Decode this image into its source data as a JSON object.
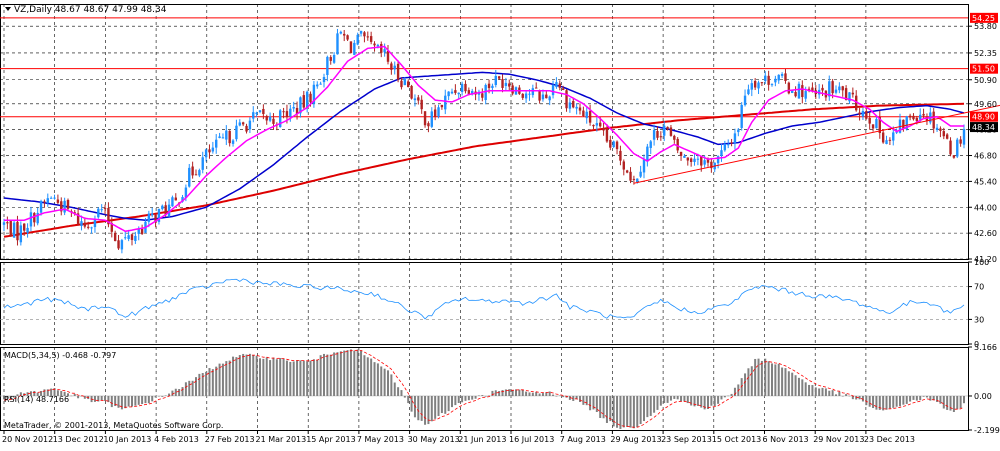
{
  "header": {
    "symbol_line": "VZ,Daily  48.67 48.67 47.99 48.34"
  },
  "footer": {
    "copyright": "MetaTrader, © 2001-2013, MetaQuotes Software Corp."
  },
  "colors": {
    "bull_candle": "#1e90ff",
    "bear_candle": "#b22222",
    "ma_fast": "#ff00ff",
    "ma_mid": "#0000cd",
    "ma_slow": "#dd0000",
    "hline": "#ff0000",
    "rsi_line": "#1e90ff",
    "macd_hist": "#808080",
    "macd_signal": "#ff0000",
    "grid": "#000000"
  },
  "chart_data": [
    {
      "type": "candlestick",
      "panel": "price",
      "ylim": [
        41.2,
        55.0
      ],
      "y_ticks": [
        "53.80",
        "52.35",
        "50.90",
        "49.60",
        "48.20",
        "46.80",
        "45.40",
        "44.00",
        "42.60",
        "41.20"
      ],
      "x_ticks": [
        "20 Nov 2012",
        "13 Dec 2012",
        "10 Jan 2013",
        "4 Feb 2013",
        "27 Feb 2013",
        "21 Mar 2013",
        "15 Apr 2013",
        "7 May 2013",
        "30 May 2013",
        "21 Jun 2013",
        "16 Jul 2013",
        "7 Aug 2013",
        "29 Aug 2013",
        "23 Sep 2013",
        "15 Oct 2013",
        "6 Nov 2013",
        "29 Nov 2013",
        "23 Dec 2013"
      ],
      "horizontal_lines": [
        {
          "value": 54.25,
          "label": "54.25"
        },
        {
          "value": 51.5,
          "label": "51.50"
        },
        {
          "value": 48.9,
          "label": "48.90"
        }
      ],
      "current_price": {
        "value": 48.34,
        "label": "48.34"
      },
      "price_anchors": [
        [
          0,
          43.1
        ],
        [
          4,
          42.6
        ],
        [
          9,
          43.6
        ],
        [
          14,
          44.6
        ],
        [
          19,
          43.8
        ],
        [
          24,
          43.0
        ],
        [
          29,
          43.9
        ],
        [
          34,
          42.1
        ],
        [
          38,
          42.4
        ],
        [
          43,
          43.3
        ],
        [
          47,
          43.8
        ],
        [
          51,
          44.2
        ],
        [
          55,
          45.7
        ],
        [
          60,
          46.8
        ],
        [
          65,
          47.6
        ],
        [
          70,
          48.3
        ],
        [
          75,
          48.9
        ],
        [
          80,
          48.7
        ],
        [
          84,
          49.1
        ],
        [
          89,
          49.6
        ],
        [
          93,
          50.6
        ],
        [
          97,
          52.2
        ],
        [
          100,
          53.4
        ],
        [
          103,
          52.7
        ],
        [
          106,
          53.1
        ],
        [
          110,
          52.5
        ],
        [
          113,
          52.2
        ],
        [
          116,
          51.3
        ],
        [
          120,
          50.6
        ],
        [
          123,
          49.4
        ],
        [
          126,
          48.6
        ],
        [
          129,
          49.3
        ],
        [
          133,
          50.3
        ],
        [
          137,
          50.7
        ],
        [
          141,
          50.1
        ],
        [
          145,
          50.8
        ],
        [
          149,
          50.9
        ],
        [
          153,
          50.3
        ],
        [
          157,
          50.2
        ],
        [
          161,
          49.9
        ],
        [
          164,
          51.0
        ],
        [
          167,
          49.8
        ],
        [
          171,
          49.2
        ],
        [
          175,
          48.5
        ],
        [
          179,
          47.5
        ],
        [
          182,
          47.0
        ],
        [
          185,
          46.1
        ],
        [
          187,
          45.4
        ],
        [
          190,
          46.8
        ],
        [
          193,
          47.9
        ],
        [
          196,
          48.4
        ],
        [
          199,
          47.3
        ],
        [
          202,
          46.6
        ],
        [
          206,
          46.8
        ],
        [
          209,
          46.3
        ],
        [
          212,
          46.6
        ],
        [
          215,
          47.4
        ],
        [
          218,
          48.4
        ],
        [
          220,
          50.3
        ],
        [
          222,
          50.9
        ],
        [
          225,
          50.8
        ],
        [
          229,
          51.1
        ],
        [
          233,
          50.5
        ],
        [
          237,
          50.3
        ],
        [
          241,
          50.0
        ],
        [
          245,
          50.4
        ],
        [
          249,
          50.2
        ],
        [
          253,
          49.5
        ],
        [
          257,
          48.9
        ],
        [
          260,
          48.1
        ],
        [
          263,
          47.6
        ],
        [
          266,
          48.3
        ],
        [
          269,
          48.9
        ],
        [
          272,
          49.2
        ],
        [
          275,
          48.9
        ],
        [
          278,
          48.2
        ],
        [
          280,
          47.5
        ],
        [
          282,
          47.0
        ],
        [
          284,
          47.8
        ],
        [
          285,
          48.3
        ]
      ],
      "ma_fast_anchors": [
        [
          0,
          43.3
        ],
        [
          6,
          43.3
        ],
        [
          12,
          43.7
        ],
        [
          18,
          43.9
        ],
        [
          24,
          43.4
        ],
        [
          30,
          43.3
        ],
        [
          36,
          42.7
        ],
        [
          42,
          42.9
        ],
        [
          48,
          43.6
        ],
        [
          54,
          44.5
        ],
        [
          60,
          45.7
        ],
        [
          66,
          46.7
        ],
        [
          72,
          47.6
        ],
        [
          78,
          48.2
        ],
        [
          84,
          48.7
        ],
        [
          90,
          49.4
        ],
        [
          96,
          50.5
        ],
        [
          102,
          51.9
        ],
        [
          108,
          52.6
        ],
        [
          113,
          52.7
        ],
        [
          118,
          51.7
        ],
        [
          123,
          50.6
        ],
        [
          128,
          49.8
        ],
        [
          133,
          49.7
        ],
        [
          138,
          50.1
        ],
        [
          144,
          50.3
        ],
        [
          150,
          50.3
        ],
        [
          156,
          50.3
        ],
        [
          162,
          50.3
        ],
        [
          167,
          50.1
        ],
        [
          172,
          49.6
        ],
        [
          177,
          48.8
        ],
        [
          182,
          47.9
        ],
        [
          187,
          46.9
        ],
        [
          191,
          46.5
        ],
        [
          195,
          47.0
        ],
        [
          199,
          47.4
        ],
        [
          204,
          47.0
        ],
        [
          209,
          46.6
        ],
        [
          214,
          46.7
        ],
        [
          218,
          47.2
        ],
        [
          222,
          48.6
        ],
        [
          227,
          49.8
        ],
        [
          232,
          50.3
        ],
        [
          237,
          50.4
        ],
        [
          242,
          50.2
        ],
        [
          247,
          50.0
        ],
        [
          252,
          49.8
        ],
        [
          257,
          49.3
        ],
        [
          261,
          48.6
        ],
        [
          265,
          48.1
        ],
        [
          269,
          48.4
        ],
        [
          273,
          48.8
        ],
        [
          277,
          48.9
        ],
        [
          281,
          48.4
        ],
        [
          285,
          48.4
        ]
      ],
      "ma_mid_anchors": [
        [
          0,
          44.5
        ],
        [
          10,
          44.3
        ],
        [
          20,
          44.0
        ],
        [
          30,
          43.6
        ],
        [
          36,
          43.4
        ],
        [
          42,
          43.3
        ],
        [
          50,
          43.5
        ],
        [
          60,
          44.0
        ],
        [
          70,
          45.0
        ],
        [
          80,
          46.3
        ],
        [
          90,
          47.8
        ],
        [
          100,
          49.2
        ],
        [
          110,
          50.4
        ],
        [
          118,
          51.0
        ],
        [
          126,
          51.1
        ],
        [
          134,
          51.2
        ],
        [
          142,
          51.3
        ],
        [
          150,
          51.2
        ],
        [
          158,
          50.9
        ],
        [
          166,
          50.5
        ],
        [
          174,
          49.9
        ],
        [
          182,
          49.1
        ],
        [
          190,
          48.5
        ],
        [
          198,
          48.2
        ],
        [
          206,
          47.8
        ],
        [
          212,
          47.4
        ],
        [
          218,
          47.5
        ],
        [
          226,
          48.0
        ],
        [
          234,
          48.4
        ],
        [
          242,
          48.6
        ],
        [
          250,
          48.9
        ],
        [
          258,
          49.2
        ],
        [
          266,
          49.4
        ],
        [
          274,
          49.5
        ],
        [
          281,
          49.3
        ],
        [
          285,
          49.1
        ]
      ],
      "ma_slow_anchors": [
        [
          0,
          42.4
        ],
        [
          20,
          43.0
        ],
        [
          40,
          43.5
        ],
        [
          60,
          44.1
        ],
        [
          80,
          44.9
        ],
        [
          100,
          45.8
        ],
        [
          120,
          46.6
        ],
        [
          140,
          47.3
        ],
        [
          160,
          47.8
        ],
        [
          180,
          48.3
        ],
        [
          200,
          48.7
        ],
        [
          220,
          49.0
        ],
        [
          240,
          49.3
        ],
        [
          260,
          49.5
        ],
        [
          285,
          49.6
        ]
      ],
      "trendline": {
        "from": [
          187,
          45.3
        ],
        "to": [
          303,
          49.8
        ]
      }
    },
    {
      "type": "line",
      "panel": "rsi",
      "title": "RSI(14) 48.7166",
      "ylim": [
        0,
        100
      ],
      "y_ticks": [
        "100",
        "70",
        "30",
        "0"
      ],
      "levels": [
        70,
        30
      ],
      "anchors": [
        [
          0,
          45
        ],
        [
          6,
          48
        ],
        [
          12,
          55
        ],
        [
          18,
          51
        ],
        [
          24,
          42
        ],
        [
          30,
          47
        ],
        [
          36,
          33
        ],
        [
          42,
          43
        ],
        [
          48,
          52
        ],
        [
          54,
          63
        ],
        [
          60,
          70
        ],
        [
          66,
          77
        ],
        [
          70,
          79
        ],
        [
          76,
          74
        ],
        [
          82,
          73
        ],
        [
          88,
          70
        ],
        [
          94,
          69
        ],
        [
          100,
          67
        ],
        [
          104,
          64
        ],
        [
          110,
          61
        ],
        [
          116,
          50
        ],
        [
          122,
          38
        ],
        [
          126,
          32
        ],
        [
          130,
          46
        ],
        [
          136,
          56
        ],
        [
          142,
          52
        ],
        [
          148,
          53
        ],
        [
          154,
          50
        ],
        [
          160,
          55
        ],
        [
          164,
          60
        ],
        [
          168,
          45
        ],
        [
          174,
          40
        ],
        [
          180,
          33
        ],
        [
          186,
          30
        ],
        [
          190,
          42
        ],
        [
          195,
          53
        ],
        [
          200,
          44
        ],
        [
          205,
          38
        ],
        [
          210,
          43
        ],
        [
          215,
          48
        ],
        [
          220,
          62
        ],
        [
          224,
          70
        ],
        [
          228,
          69
        ],
        [
          234,
          63
        ],
        [
          240,
          59
        ],
        [
          246,
          57
        ],
        [
          252,
          52
        ],
        [
          258,
          44
        ],
        [
          262,
          38
        ],
        [
          266,
          45
        ],
        [
          270,
          52
        ],
        [
          276,
          50
        ],
        [
          280,
          38
        ],
        [
          283,
          42
        ],
        [
          285,
          49
        ]
      ]
    },
    {
      "type": "bar",
      "panel": "macd",
      "title": "MACD(5,34,5) -0.468 -0.797",
      "ylim": [
        -2.199,
        3.166
      ],
      "y_ticks": [
        "3.166",
        "0.00",
        "-2.199"
      ],
      "histogram_anchors": [
        [
          0,
          -0.3
        ],
        [
          5,
          0.2
        ],
        [
          10,
          0.3
        ],
        [
          15,
          0.5
        ],
        [
          20,
          0.1
        ],
        [
          25,
          -0.3
        ],
        [
          30,
          -0.4
        ],
        [
          35,
          -0.9
        ],
        [
          40,
          -0.6
        ],
        [
          45,
          -0.2
        ],
        [
          50,
          0.3
        ],
        [
          55,
          0.9
        ],
        [
          60,
          1.6
        ],
        [
          65,
          2.2
        ],
        [
          70,
          2.6
        ],
        [
          75,
          2.6
        ],
        [
          80,
          2.4
        ],
        [
          85,
          2.3
        ],
        [
          90,
          2.2
        ],
        [
          95,
          2.6
        ],
        [
          100,
          3.0
        ],
        [
          103,
          3.1
        ],
        [
          106,
          2.8
        ],
        [
          110,
          2.2
        ],
        [
          114,
          1.6
        ],
        [
          118,
          0.3
        ],
        [
          122,
          -1.4
        ],
        [
          126,
          -1.9
        ],
        [
          130,
          -1.2
        ],
        [
          134,
          -0.6
        ],
        [
          138,
          -0.2
        ],
        [
          142,
          0.0
        ],
        [
          146,
          0.3
        ],
        [
          150,
          0.4
        ],
        [
          154,
          0.3
        ],
        [
          158,
          0.2
        ],
        [
          162,
          0.2
        ],
        [
          166,
          0.0
        ],
        [
          170,
          -0.3
        ],
        [
          174,
          -0.8
        ],
        [
          178,
          -1.5
        ],
        [
          182,
          -2.0
        ],
        [
          185,
          -2.1
        ],
        [
          188,
          -1.9
        ],
        [
          192,
          -1.2
        ],
        [
          196,
          -0.4
        ],
        [
          200,
          -0.2
        ],
        [
          204,
          -0.6
        ],
        [
          208,
          -0.8
        ],
        [
          212,
          -0.5
        ],
        [
          216,
          0.2
        ],
        [
          220,
          1.4
        ],
        [
          223,
          2.3
        ],
        [
          226,
          2.4
        ],
        [
          230,
          2.0
        ],
        [
          234,
          1.5
        ],
        [
          238,
          0.9
        ],
        [
          242,
          0.5
        ],
        [
          246,
          0.3
        ],
        [
          250,
          0.0
        ],
        [
          254,
          -0.3
        ],
        [
          258,
          -0.8
        ],
        [
          262,
          -1.0
        ],
        [
          266,
          -0.6
        ],
        [
          270,
          -0.3
        ],
        [
          274,
          -0.1
        ],
        [
          278,
          -0.6
        ],
        [
          282,
          -1.1
        ],
        [
          285,
          -0.5
        ]
      ],
      "signal_smoothing": 0.35
    }
  ]
}
